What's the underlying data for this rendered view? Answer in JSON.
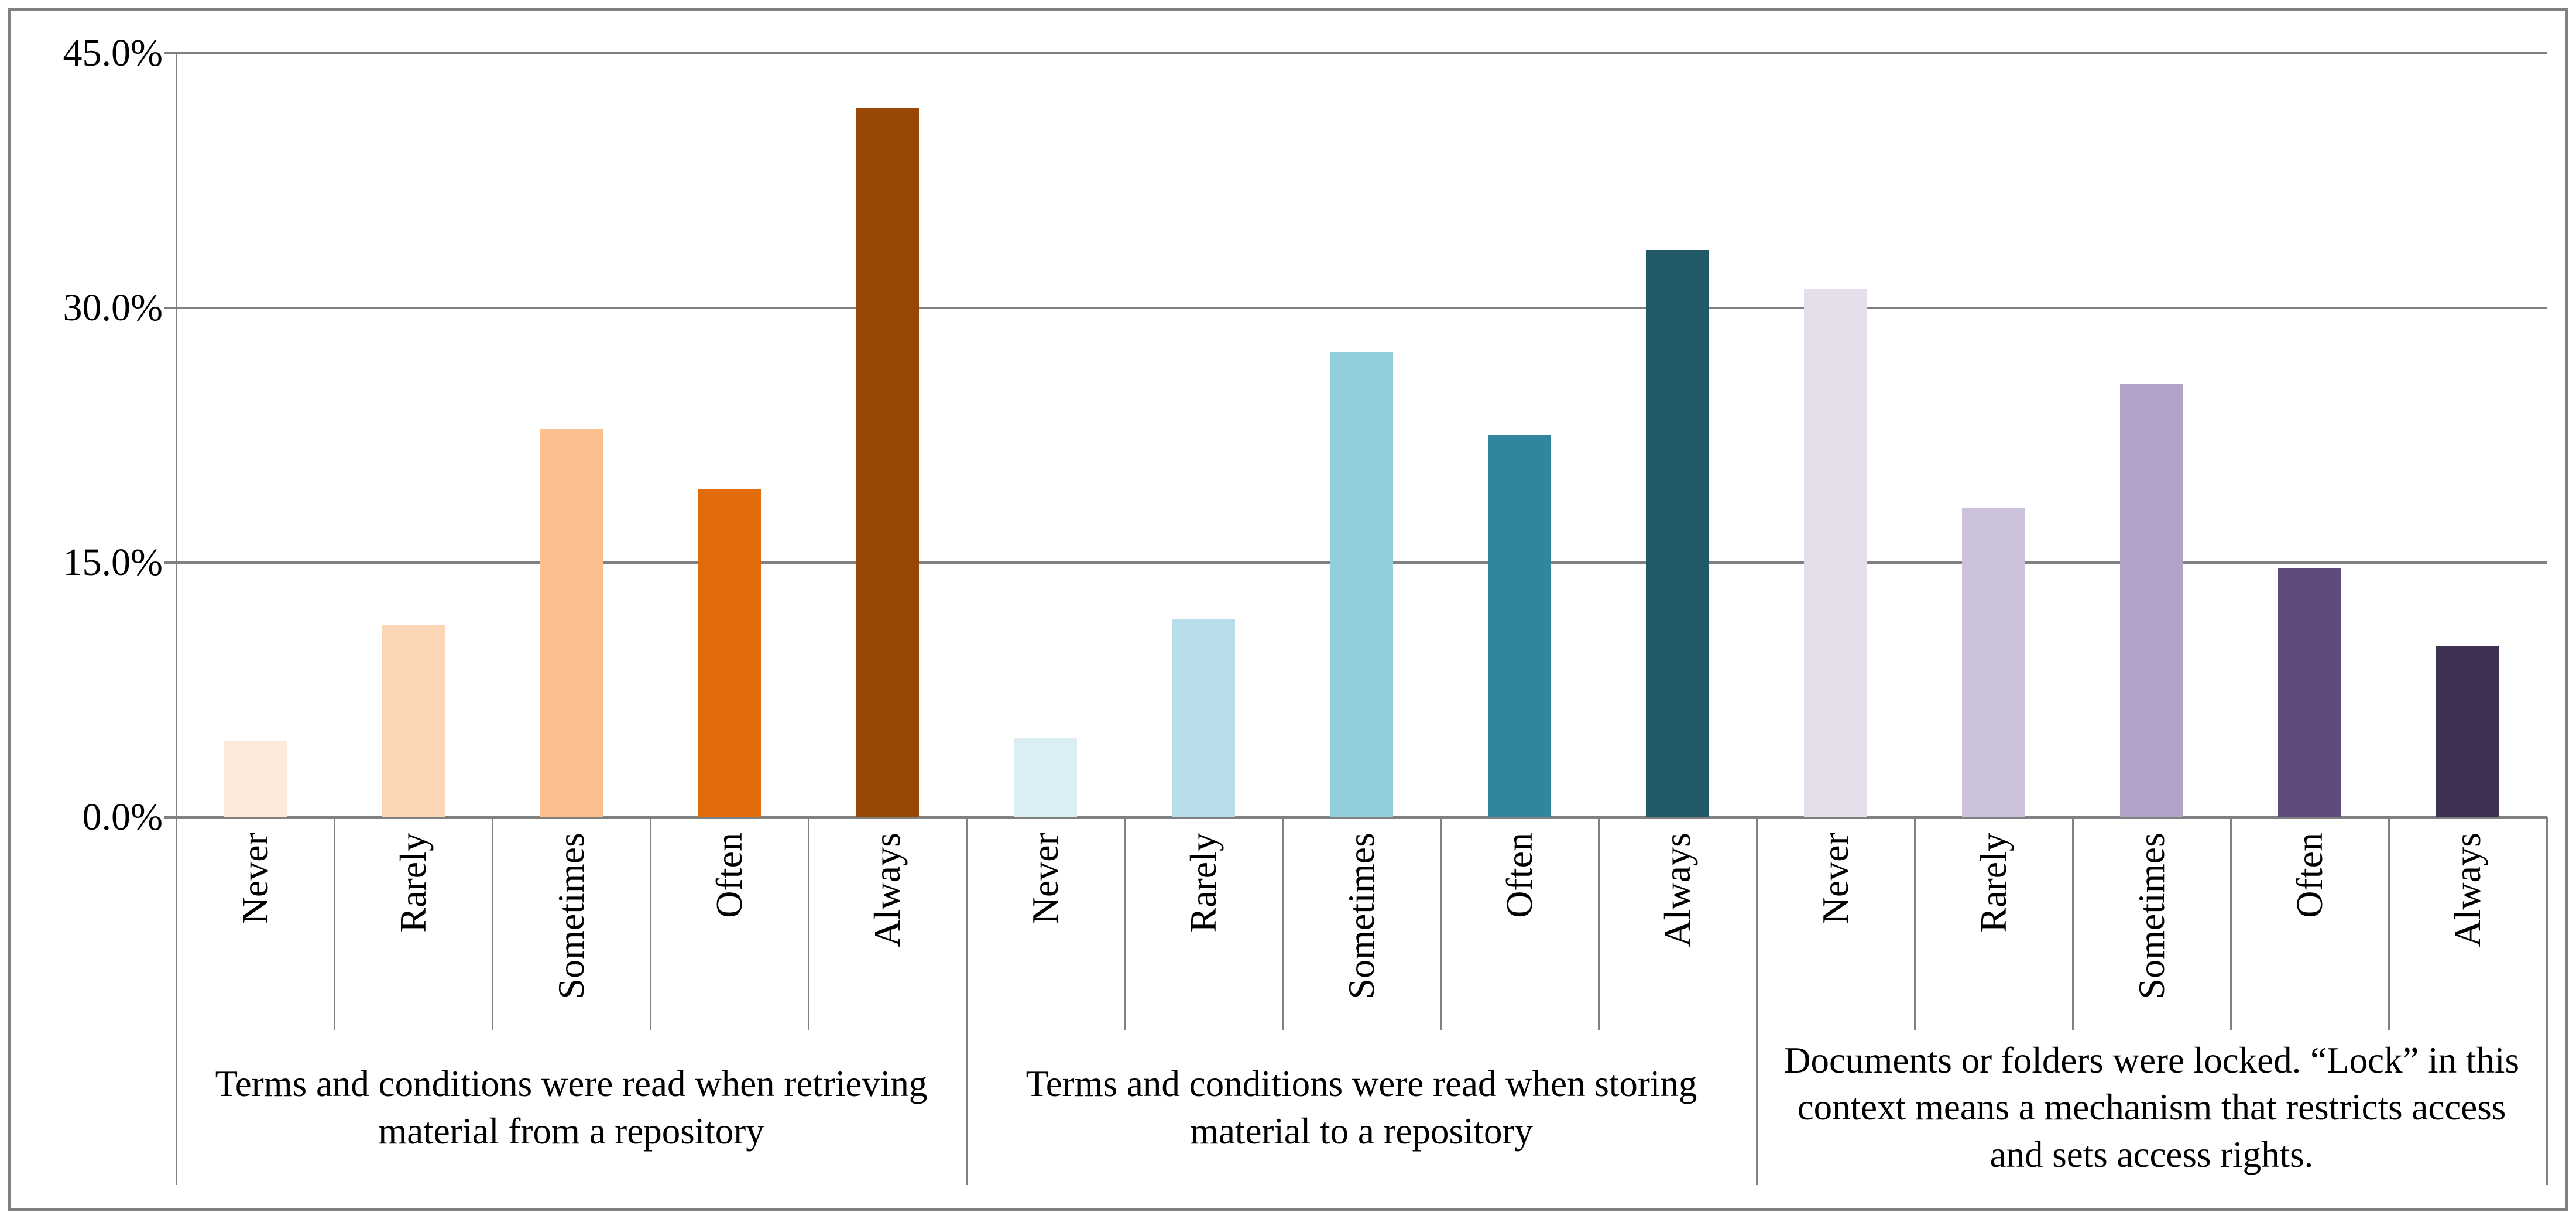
{
  "chart_data": {
    "type": "bar",
    "title": "",
    "grid": true,
    "legend": null,
    "y_axis": {
      "unit": "%",
      "min": 0,
      "max": 45,
      "tick_labels": [
        "0.0%",
        "15.0%",
        "30.0%",
        "45.0%"
      ],
      "gridline_values": [
        0,
        15,
        30,
        45
      ]
    },
    "categories": [
      "Never",
      "Rarely",
      "Sometimes",
      "Often",
      "Always"
    ],
    "groups": [
      {
        "label": "Terms and conditions were read when retrieving material from a repository",
        "values": [
          4.5,
          11.3,
          22.9,
          19.3,
          41.8
        ],
        "colors": [
          "#FDE9D9",
          "#FCD5B4",
          "#FAC090",
          "#E36C0A",
          "#974806"
        ]
      },
      {
        "label": "Terms and conditions were read when storing material to a repository",
        "values": [
          4.7,
          11.7,
          27.4,
          22.5,
          33.4
        ],
        "colors": [
          "#DAEEF3",
          "#B6DDE8",
          "#92CDDC",
          "#31859C",
          "#215968"
        ]
      },
      {
        "label": "Documents or folders were locked. “Lock” in this context means a mechanism that restricts access and sets access rights.",
        "values": [
          31.1,
          18.2,
          25.5,
          14.7,
          10.1
        ],
        "colors": [
          "#E5DFEC",
          "#CCC1DA",
          "#B2A2C7",
          "#604A7B",
          "#3F3151"
        ]
      }
    ],
    "colors_meta": {
      "gridline": "#808080",
      "axis": "#808080",
      "frame_border": "#7F7F7F",
      "text": "#000000"
    }
  }
}
